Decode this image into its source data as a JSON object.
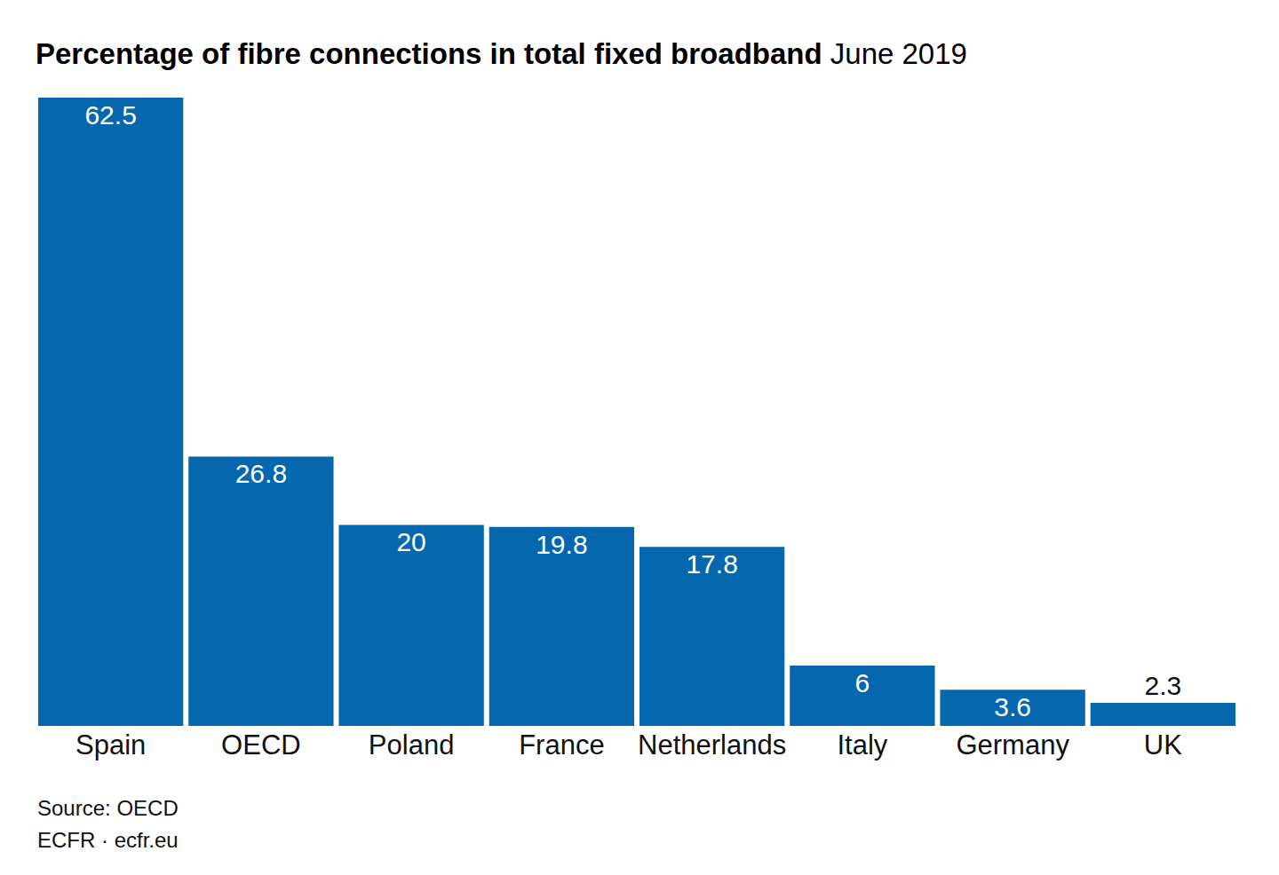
{
  "chart_data": {
    "type": "bar",
    "title": "Percentage of fibre connections in total fixed broadband",
    "subtitle": "June 2019",
    "categories": [
      "Spain",
      "OECD",
      "Poland",
      "France",
      "Netherlands",
      "Italy",
      "Germany",
      "UK"
    ],
    "values": [
      62.5,
      26.8,
      20,
      19.8,
      17.8,
      6,
      3.6,
      2.3
    ],
    "color": "#0567ad",
    "ylim": [
      0,
      62.5
    ],
    "grid": false,
    "data_labels": true,
    "tick_labels": "x",
    "annotations": [
      "Source: OECD",
      "ECFR · ecfr.eu"
    ]
  }
}
